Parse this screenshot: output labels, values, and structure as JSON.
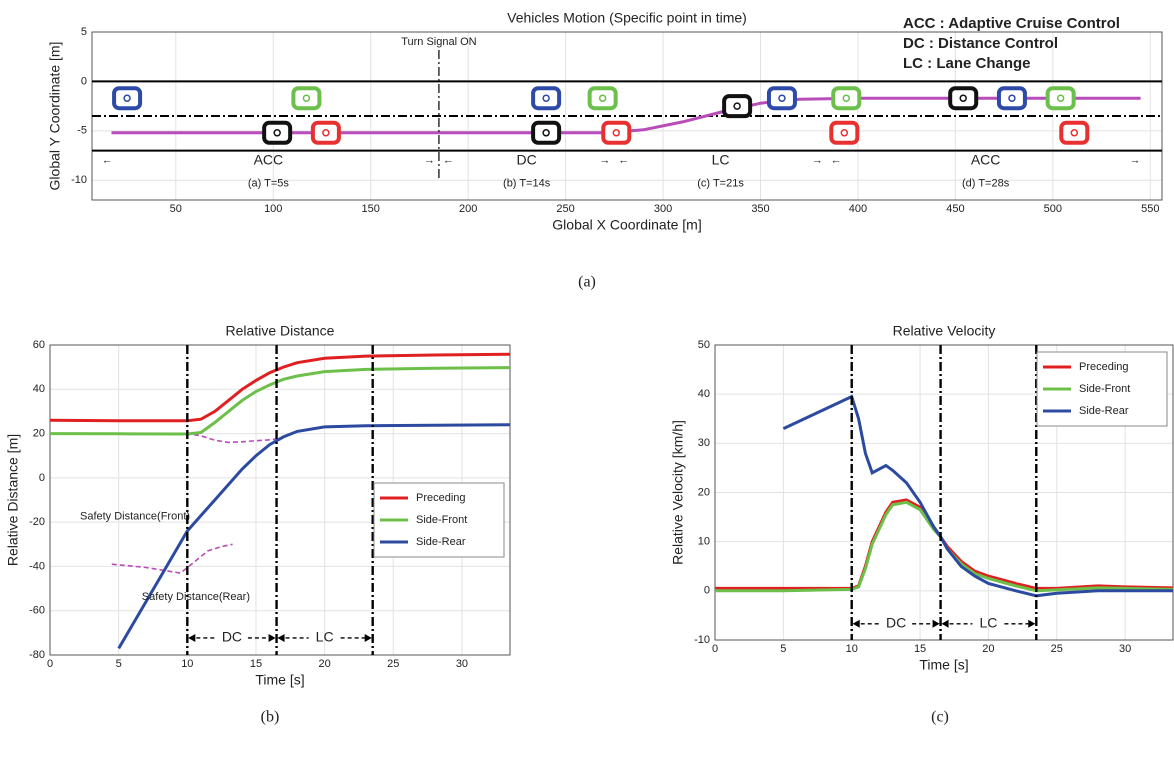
{
  "chart_data": [
    {
      "type": "trajectory",
      "title": "Vehicles Motion (Specific point in time)",
      "xlabel": "Global X Coordinate [m]",
      "ylabel": "Global Y Coordinate [m]",
      "caption": "(a)",
      "xlim": [
        7,
        556
      ],
      "xticks": [
        50,
        100,
        150,
        200,
        250,
        300,
        350,
        400,
        450,
        500,
        550
      ],
      "ylim": [
        -12,
        5
      ],
      "yticks": [
        -10,
        -5,
        0,
        5
      ],
      "grid": true,
      "series": [
        {
          "color": "#b84cb8",
          "x": [
            17,
            270,
            290,
            310,
            330,
            350,
            370,
            400,
            545
          ],
          "values": [
            -5.2,
            -5.2,
            -4.9,
            -4.1,
            -3.1,
            -2.2,
            -1.8,
            -1.7,
            -1.7
          ]
        },
        {
          "color": "#2e4aa8",
          "marker": "car",
          "x": [
            25,
            240,
            361,
            479
          ],
          "values": [
            -1.7,
            -1.7,
            -1.7,
            -1.7
          ]
        },
        {
          "color": "#6ac04a",
          "marker": "car",
          "x": [
            117,
            269,
            394,
            504
          ],
          "values": [
            -1.7,
            -1.7,
            -1.7,
            -1.7
          ]
        },
        {
          "color": "#111111",
          "marker": "car",
          "x": [
            102,
            240,
            338,
            454
          ],
          "values": [
            -5.2,
            -5.2,
            -2.5,
            -1.7
          ]
        },
        {
          "color": "#e83030",
          "marker": "car",
          "x": [
            127,
            276,
            393,
            511
          ],
          "values": [
            -5.2,
            -5.2,
            -5.2,
            -5.2
          ]
        }
      ],
      "lane_lines": [
        {
          "value": 0,
          "style": "solid"
        },
        {
          "value": -3.5,
          "style": "dashdot"
        },
        {
          "value": -7,
          "style": "solid"
        }
      ],
      "signal": {
        "label": "Turn Signal ON",
        "x": 185
      },
      "phases": [
        {
          "label": "ACC",
          "caption": "(a) T=5s",
          "range": [
            12,
            183
          ]
        },
        {
          "label": "DC",
          "caption": "(b) T=14s",
          "range": [
            187,
            273
          ]
        },
        {
          "label": "LC",
          "caption": "(c) T=21s",
          "range": [
            277,
            382
          ]
        },
        {
          "label": "ACC",
          "caption": "(d) T=28s",
          "range": [
            386,
            545
          ]
        }
      ],
      "definitions": [
        "ACC : Adaptive Cruise Control",
        "DC : Distance Control",
        "LC :  Lane Change"
      ]
    },
    {
      "type": "line",
      "title": "Relative Distance",
      "xlabel": "Time [s]",
      "ylabel": "Relative Distance [m]",
      "caption": "(b)",
      "xlim": [
        0,
        33.5
      ],
      "xticks": [
        0,
        5,
        10,
        15,
        20,
        25,
        30
      ],
      "ylim": [
        -80,
        60
      ],
      "yticks": [
        -80,
        -60,
        -40,
        -20,
        0,
        20,
        40,
        60
      ],
      "grid": true,
      "x": [
        0,
        5,
        10,
        11,
        12,
        13,
        14,
        15,
        16,
        17,
        18,
        20,
        23,
        28,
        33.5
      ],
      "series": [
        {
          "name": "Preceding",
          "color": "#e02020",
          "values": [
            26,
            25.8,
            25.8,
            26.5,
            30,
            35,
            40,
            44,
            47.5,
            50,
            52,
            54,
            55,
            55.5,
            55.8
          ]
        },
        {
          "name": "Side-Front",
          "color": "#6cc04a",
          "values": [
            20,
            19.9,
            19.8,
            20.5,
            25,
            30,
            35,
            39,
            42,
            44.5,
            46,
            48,
            49,
            49.5,
            49.8
          ]
        },
        {
          "name": "Side-Rear",
          "color": "#2c4aa0",
          "values": [
            null,
            -77,
            -24,
            -17,
            -10,
            -3,
            4,
            10,
            15,
            18.5,
            21,
            23,
            23.5,
            23.8,
            24
          ]
        }
      ],
      "reference_series": [
        {
          "label": "Safety Distance(Front)",
          "color": "#b84cb8",
          "x": [
            0,
            10,
            11,
            12,
            13,
            14,
            15,
            16,
            16.5
          ],
          "values": [
            20,
            20,
            19,
            17,
            16,
            16.3,
            16.8,
            17.2,
            17.5
          ]
        },
        {
          "label": "Safety Distance(Rear)",
          "color": "#b84cb8",
          "x": [
            4.5,
            7,
            9.5,
            10.5,
            11.5,
            12.5,
            13.3
          ],
          "values": [
            -39,
            -40.5,
            -43,
            -38,
            -33,
            -31,
            -30
          ]
        }
      ],
      "legend": "center right",
      "dividers": [
        10,
        16.5,
        23.5
      ],
      "phases": [
        {
          "label": "DC",
          "range": [
            10,
            16.5
          ]
        },
        {
          "label": "LC",
          "range": [
            16.5,
            23.5
          ]
        }
      ]
    },
    {
      "type": "line",
      "title": "Relative Velocity",
      "xlabel": "Time [s]",
      "ylabel": "Relative Velocity [km/h]",
      "caption": "(c)",
      "xlim": [
        0,
        33.5
      ],
      "xticks": [
        0,
        5,
        10,
        15,
        20,
        25,
        30
      ],
      "ylim": [
        -10,
        50
      ],
      "yticks": [
        -10,
        0,
        10,
        20,
        30,
        40,
        50
      ],
      "grid": true,
      "x": [
        0,
        5,
        10,
        10.5,
        11,
        11.5,
        12.5,
        13,
        14,
        15,
        16,
        16.5,
        17,
        18,
        19,
        20,
        22,
        23.5,
        25,
        28,
        30,
        33.5
      ],
      "series": [
        {
          "name": "Preceding",
          "color": "#e02020",
          "values": [
            0.5,
            0.5,
            0.5,
            1,
            5,
            10,
            16,
            18,
            18.5,
            17,
            13,
            11,
            9,
            6,
            4,
            3,
            1.5,
            0.5,
            0.5,
            1,
            0.8,
            0.6
          ]
        },
        {
          "name": "Side-Front",
          "color": "#6cc04a",
          "values": [
            0,
            0,
            0.3,
            0.8,
            4.5,
            9.5,
            15.5,
            17.5,
            18,
            16.5,
            12.5,
            11,
            8.5,
            5.5,
            3.5,
            2.5,
            1,
            0,
            0.2,
            0.6,
            0.5,
            0.3
          ]
        },
        {
          "name": "Side-Rear",
          "color": "#2c4aa0",
          "values": [
            null,
            33,
            39.5,
            35,
            28,
            24,
            25.5,
            24.5,
            22,
            18,
            13,
            11,
            8.5,
            5,
            3,
            1.5,
            0,
            -1,
            -0.5,
            0,
            0,
            0
          ]
        }
      ],
      "legend": "upper right",
      "dividers": [
        10,
        16.5,
        23.5
      ],
      "phases": [
        {
          "label": "DC",
          "range": [
            10,
            16.5
          ]
        },
        {
          "label": "LC",
          "range": [
            16.5,
            23.5
          ]
        }
      ]
    }
  ]
}
